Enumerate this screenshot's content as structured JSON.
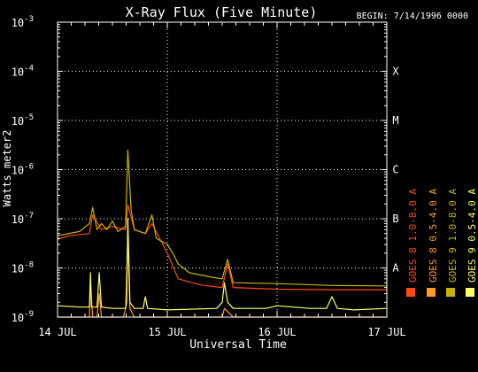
{
  "chart_data": {
    "type": "line",
    "title": "X-Ray Flux (Five Minute)",
    "begin_label": "BEGIN: 7/14/1996 0000",
    "xlabel": "Universal Time",
    "ylabel": "Watts meter2",
    "yscale": "log",
    "ylim": [
      1e-09,
      0.001
    ],
    "xlim_days": [
      0,
      3
    ],
    "x_tick_labels": [
      "14 JUL",
      "15 JUL",
      "16 JUL",
      "17 JUL"
    ],
    "y_tick_labels": [
      {
        "base": "10",
        "exp": "-3"
      },
      {
        "base": "10",
        "exp": "-4"
      },
      {
        "base": "10",
        "exp": "-5"
      },
      {
        "base": "10",
        "exp": "-6"
      },
      {
        "base": "10",
        "exp": "-7"
      },
      {
        "base": "10",
        "exp": "-8"
      },
      {
        "base": "10",
        "exp": "-9"
      }
    ],
    "flare_classes": [
      {
        "label": "X",
        "value": 0.0001
      },
      {
        "label": "M",
        "value": 1e-05
      },
      {
        "label": "C",
        "value": 1e-06
      },
      {
        "label": "B",
        "value": 1e-07
      },
      {
        "label": "A",
        "value": 1e-08
      }
    ],
    "grid": true,
    "legend_position": "right, vertical",
    "series": [
      {
        "name": "GOES 8 1.0-8.0 A",
        "color": "#ff4a14",
        "x": [
          0,
          0.1,
          0.29,
          0.32,
          0.4,
          0.5,
          0.62,
          0.64,
          0.7,
          0.8,
          0.86,
          1.0,
          1.1,
          1.3,
          1.5,
          1.55,
          1.6,
          2.0,
          2.5,
          3.0
        ],
        "y": [
          3.8e-08,
          4.5e-08,
          5e-08,
          1.2e-07,
          6e-08,
          7e-08,
          6e-08,
          1.9e-07,
          6e-08,
          5e-08,
          8e-08,
          2e-08,
          6e-09,
          4.5e-09,
          4e-09,
          1.2e-08,
          4e-09,
          3.7e-09,
          3.6e-09,
          3.6e-09
        ]
      },
      {
        "name": "GOES 8 0.5-4.0 A",
        "color": "#ff9a28",
        "x": [
          0,
          0.29,
          0.3,
          0.32,
          0.34,
          0.36,
          0.38,
          0.4,
          0.5,
          0.6,
          0.62,
          0.64,
          0.66,
          0.7,
          1.0,
          1.45,
          1.5,
          1.52,
          1.55,
          1.6,
          1.65,
          2.0,
          2.5,
          3.0
        ],
        "y": [
          1e-09,
          1e-09,
          5e-09,
          1e-09,
          1e-09,
          1e-09,
          3e-09,
          1e-09,
          1e-09,
          1e-09,
          1.5e-09,
          4e-08,
          1.5e-09,
          1e-09,
          1e-09,
          1e-09,
          1e-09,
          1.5e-09,
          1.3e-09,
          1e-09,
          1e-09,
          1e-09,
          1e-09,
          1e-09
        ]
      },
      {
        "name": "GOES 9 1.0-8.0 A",
        "color": "#c8b400",
        "x": [
          0,
          0.1,
          0.2,
          0.29,
          0.32,
          0.36,
          0.4,
          0.45,
          0.5,
          0.55,
          0.62,
          0.64,
          0.67,
          0.7,
          0.8,
          0.86,
          0.9,
          1.0,
          1.05,
          1.1,
          1.2,
          1.4,
          1.5,
          1.55,
          1.6,
          2.0,
          2.5,
          3.0
        ],
        "y": [
          4.5e-08,
          5e-08,
          5.5e-08,
          8e-08,
          1.7e-07,
          6e-08,
          8e-08,
          6e-08,
          9e-08,
          5.5e-08,
          7e-08,
          2.5e-06,
          1.5e-07,
          6e-08,
          5e-08,
          1.2e-07,
          4e-08,
          3e-08,
          2e-08,
          1.2e-08,
          8e-09,
          6.5e-09,
          6e-09,
          1.5e-08,
          5e-09,
          4.8e-09,
          4.4e-09,
          4.3e-09
        ]
      },
      {
        "name": "GOES 9 0.5-4.0 A",
        "color": "#ffff64",
        "x": [
          0,
          0.2,
          0.29,
          0.3,
          0.31,
          0.32,
          0.34,
          0.36,
          0.38,
          0.4,
          0.5,
          0.62,
          0.63,
          0.64,
          0.66,
          0.7,
          0.78,
          0.8,
          0.82,
          1.0,
          1.45,
          1.5,
          1.52,
          1.55,
          1.6,
          1.9,
          2.0,
          2.3,
          2.45,
          2.5,
          2.55,
          2.7,
          3.0
        ],
        "y": [
          1.7e-09,
          1.6e-09,
          1.6e-09,
          8e-09,
          1.6e-09,
          1.6e-09,
          1.6e-09,
          1.6e-09,
          8e-09,
          1.6e-09,
          1.5e-09,
          1.5e-09,
          2e-09,
          1e-07,
          2e-09,
          1.5e-09,
          1.5e-09,
          2.6e-09,
          1.5e-09,
          1.4e-09,
          1.5e-09,
          2e-09,
          5e-09,
          2e-09,
          1.5e-09,
          1.5e-09,
          1.7e-09,
          1.5e-09,
          1.5e-09,
          2.6e-09,
          1.5e-09,
          1.4e-09,
          1.5e-09
        ]
      }
    ]
  }
}
